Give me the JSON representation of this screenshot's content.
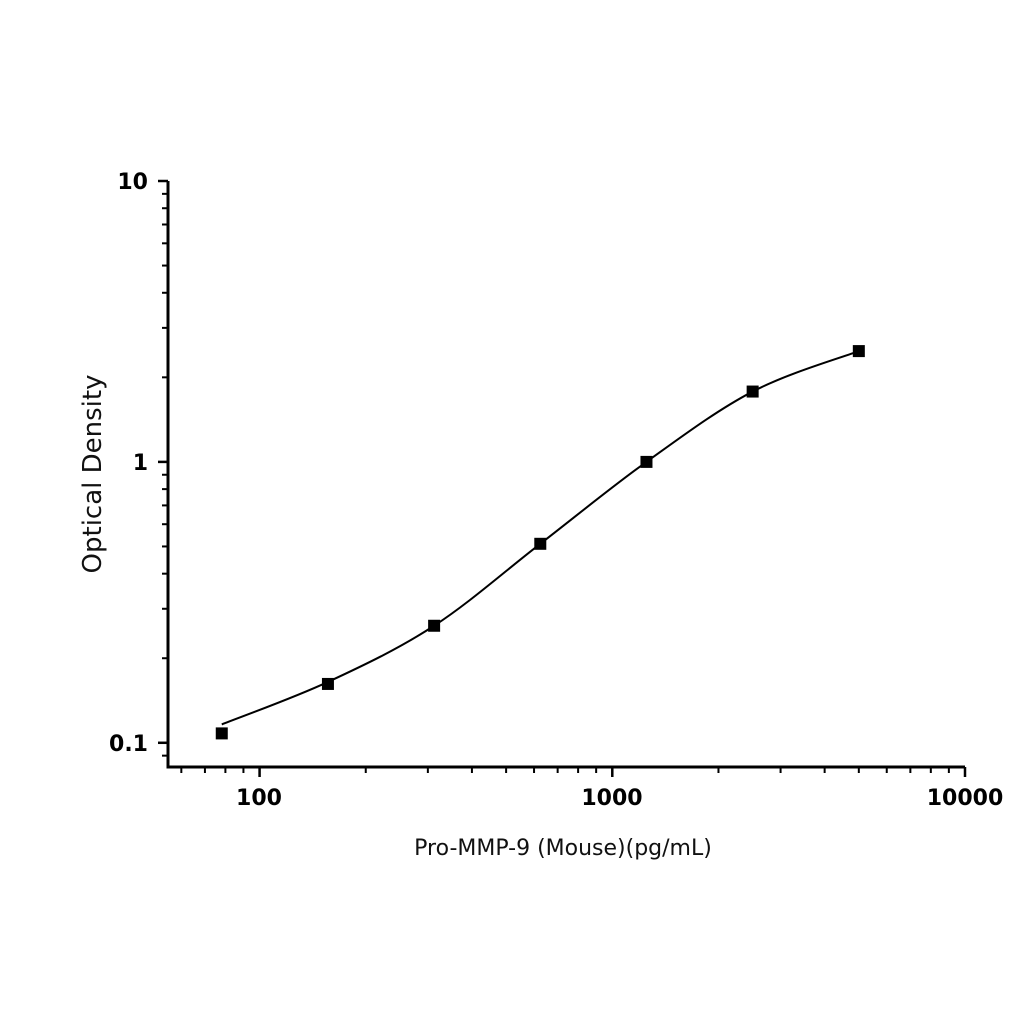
{
  "chart_data": {
    "type": "scatter",
    "title": "",
    "xlabel": "Pro-MMP-9 (Mouse)(pg/mL)",
    "ylabel": "Optical Density",
    "x_scale": "log",
    "y_scale": "log",
    "xlim": [
      55,
      10000
    ],
    "ylim": [
      0.082,
      10
    ],
    "x_ticks": [
      "100",
      "1000",
      "10000"
    ],
    "y_ticks": [
      "0.1",
      "1",
      "10"
    ],
    "grid": false,
    "legend": "none",
    "series": [
      {
        "x": [
          78.125,
          156.25,
          312.5,
          625,
          1250,
          2500,
          5000
        ],
        "y": [
          0.108,
          0.162,
          0.261,
          0.511,
          1.0,
          1.78,
          2.48
        ],
        "marker": "square",
        "color": "#000000",
        "fit_curve": true
      }
    ]
  }
}
